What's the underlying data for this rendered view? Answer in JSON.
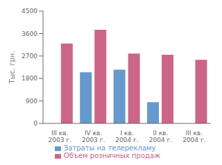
{
  "chart_data": {
    "type": "bar",
    "categories": [
      "III кв.\n2003 г.",
      "IV кв.\n2003 г.",
      "I кв.\n2004 г.",
      "II кв.\n2004 г.",
      "III кв.\n2004 г."
    ],
    "series": [
      {
        "name": "Затраты на телерекламу",
        "color": "#6699cc",
        "values": [
          0,
          2050,
          2150,
          850,
          0
        ]
      },
      {
        "name": "Объем розничных продаж",
        "color": "#cc6688",
        "values": [
          3200,
          3750,
          2800,
          2750,
          2550
        ]
      }
    ],
    "ylabel": "Тыс. грн.",
    "ylim": [
      0,
      4500
    ],
    "yticks": [
      0,
      900,
      1800,
      2700,
      3600,
      4500
    ],
    "grid": false,
    "legend": "bottom"
  }
}
